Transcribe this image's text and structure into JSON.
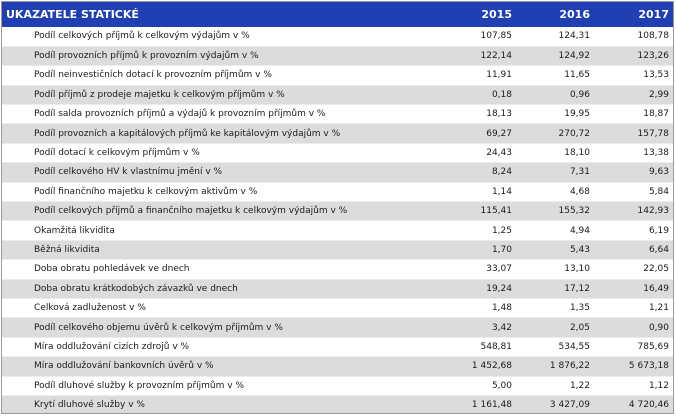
{
  "table": {
    "header": [
      "UKAZATELE STATICKÉ",
      "2015",
      "2016",
      "2017"
    ],
    "rows": [
      [
        "Podíl celkových příjmů k celkovým výdajům v %",
        "107,85",
        "124,31",
        "108,78"
      ],
      [
        "Podíl provozních příjmů k provozním výdajům v %",
        "122,14",
        "124,92",
        "123,26"
      ],
      [
        "Podíl neinvestičních dotací k provozním příjmům v %",
        "11,91",
        "11,65",
        "13,53"
      ],
      [
        "Podíl příjmů z prodeje majetku k celkovým příjmům v %",
        "0,18",
        "0,96",
        "2,99"
      ],
      [
        "Podíl salda provozních příjmů a výdajů k provozním příjmům v %",
        "18,13",
        "19,95",
        "18,87"
      ],
      [
        "Podíl provozních a kapitálových příjmů ke kapitálovým výdajům v %",
        "69,27",
        "270,72",
        "157,78"
      ],
      [
        "Podíl dotací k celkovým příjmům v %",
        "24,43",
        "18,10",
        "13,38"
      ],
      [
        "Podíl celkového HV k vlastnímu jmění v %",
        "8,24",
        "7,31",
        "9,63"
      ],
      [
        "Podíl finančního majetku k celkovým aktivům v %",
        "1,14",
        "4,68",
        "5,84"
      ],
      [
        "Podíl celkových příjmů a finančního majetku k celkovým výdajům v %",
        "115,41",
        "155,32",
        "142,93"
      ],
      [
        "Okamžitá likvidita",
        "1,25",
        "4,94",
        "6,19"
      ],
      [
        "Běžná likvidita",
        "1,70",
        "5,43",
        "6,64"
      ],
      [
        "Doba obratu pohledávek ve dnech",
        "33,07",
        "13,10",
        "22,05"
      ],
      [
        "Doba obratu krátkodobých závazků ve dnech",
        "19,24",
        "17,12",
        "16,49"
      ],
      [
        "Celková zadluženost v %",
        "1,48",
        "1,35",
        "1,21"
      ],
      [
        "Podíl celkového objemu úvěrů k celkovým příjmům v %",
        "3,42",
        "2,05",
        "0,90"
      ],
      [
        "Míra oddlužování cizích zdrojů v %",
        "548,81",
        "534,55",
        "785,69"
      ],
      [
        "Míra oddlužování bankovních úvěrů v %",
        "1 452,68",
        "1 876,22",
        "5 673,18"
      ],
      [
        "Podíl dluhové služby k provozním příjmům v %",
        "5,00",
        "1,22",
        "1,12"
      ],
      [
        "Krytí dluhové služby v %",
        "1 161,48",
        "3 427,09",
        "4 720,46"
      ]
    ]
  },
  "colors": {
    "header_bg": "#1f3fb3",
    "row_alt": "#dcdcdc"
  }
}
